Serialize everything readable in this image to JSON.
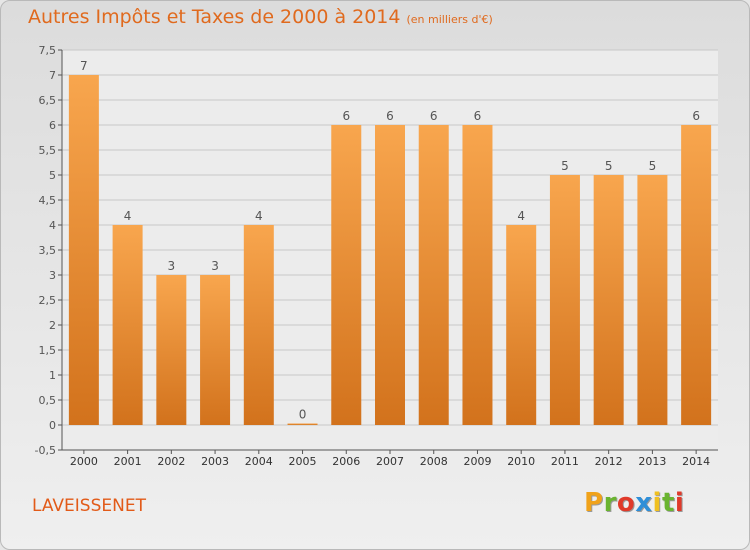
{
  "title": "Autres Impôts et Taxes de 2000 à 2014",
  "subtitle": "(en milliers d'€)",
  "commune": "LAVEISSENET",
  "brand": {
    "letters": [
      "P",
      "r",
      "o",
      "x",
      "i",
      "t",
      "i"
    ],
    "colors": [
      "#f0a21a",
      "#6ab430",
      "#e03a2a",
      "#2f8fd8",
      "#f0c020",
      "#6ab430",
      "#e03a2a"
    ]
  },
  "colors": {
    "bar_top": "#f8a64e",
    "bar_bottom": "#d2721c",
    "title": "#e06a1e"
  },
  "chart_data": {
    "type": "bar",
    "title": "Autres Impôts et Taxes de 2000 à 2014",
    "subtitle": "(en milliers d'€)",
    "categories": [
      "2000",
      "2001",
      "2002",
      "2003",
      "2004",
      "2005",
      "2006",
      "2007",
      "2008",
      "2009",
      "2010",
      "2011",
      "2012",
      "2013",
      "2014"
    ],
    "values": [
      7,
      4,
      3,
      3,
      4,
      0,
      6,
      6,
      6,
      6,
      4,
      5,
      5,
      5,
      6
    ],
    "value_labels": [
      "7",
      "4",
      "3",
      "3",
      "4",
      "0",
      "6",
      "6",
      "6",
      "6",
      "4",
      "5",
      "5",
      "5",
      "6"
    ],
    "ylim": [
      -0.5,
      7.5
    ],
    "yticks": [
      -0.5,
      0,
      0.5,
      1,
      1.5,
      2,
      2.5,
      3,
      3.5,
      4,
      4.5,
      5,
      5.5,
      6,
      6.5,
      7,
      7.5
    ],
    "ytick_labels": [
      "-0,5",
      "0",
      "0,5",
      "1",
      "1,5",
      "2",
      "2,5",
      "3",
      "3,5",
      "4",
      "4,5",
      "5",
      "5,5",
      "6",
      "6,5",
      "7",
      "7,5"
    ],
    "grid": true,
    "xlabel": "",
    "ylabel": ""
  }
}
